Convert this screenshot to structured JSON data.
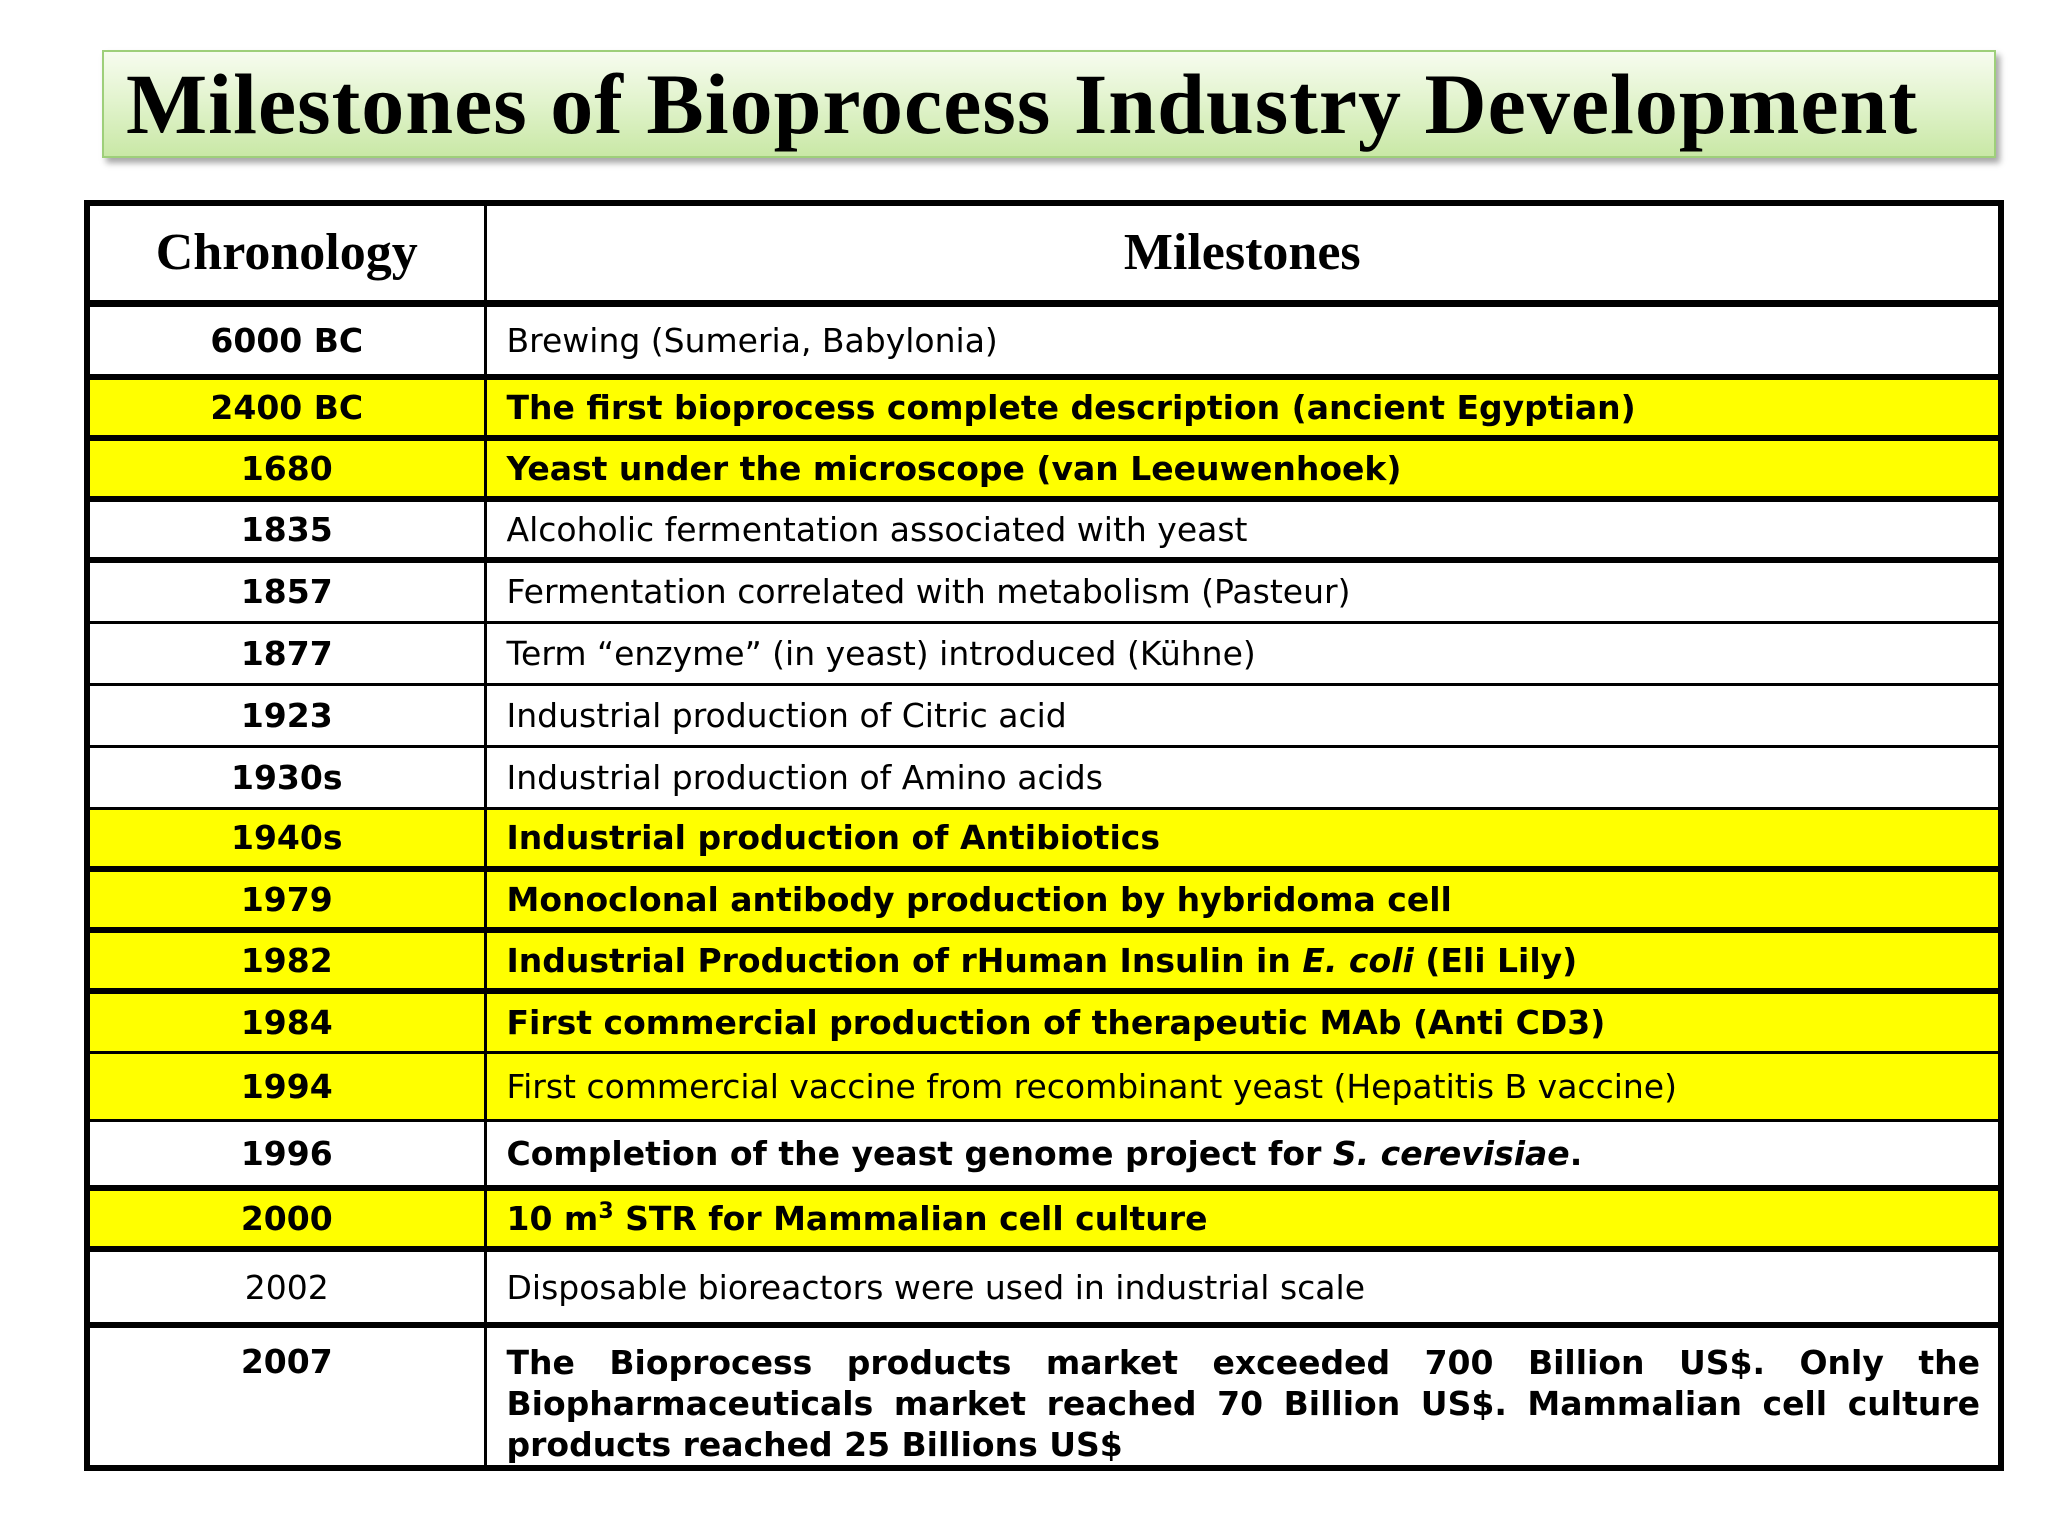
{
  "title": "Milestones of Bioprocess Industry Development",
  "table": {
    "headers": {
      "chronology": "Chronology",
      "milestones": "Milestones"
    },
    "rows": [
      {
        "year": "6000 BC",
        "milestone": "Brewing (Sumeria, Babylonia)"
      },
      {
        "year": "2400 BC",
        "milestone": "The first bioprocess complete description (ancient Egyptian)"
      },
      {
        "year": "1680",
        "milestone": "Yeast under the microscope (van Leeuwenhoek)"
      },
      {
        "year": "1835",
        "milestone": "Alcoholic fermentation associated with yeast"
      },
      {
        "year": "1857",
        "milestone": "Fermentation correlated with metabolism (Pasteur)"
      },
      {
        "year": "1877",
        "milestone": "Term “enzyme” (in yeast) introduced (Kühne)"
      },
      {
        "year": "1923",
        "milestone": "Industrial production of Citric acid"
      },
      {
        "year": "1930s",
        "milestone": "Industrial production of Amino acids"
      },
      {
        "year": "1940s",
        "milestone": "Industrial production of Antibiotics"
      },
      {
        "year": "1979",
        "milestone": "Monoclonal antibody production by hybridoma cell"
      },
      {
        "year": "1982",
        "milestone_before": "Industrial Production of rHuman Insulin in ",
        "milestone_italic": "E. coli",
        "milestone_after": " (Eli Lily)"
      },
      {
        "year": "1984",
        "milestone": "First commercial production of therapeutic MAb (Anti CD3)"
      },
      {
        "year": "1994",
        "milestone": "First commercial vaccine from recombinant yeast (Hepatitis B vaccine)"
      },
      {
        "year": "1996",
        "milestone_before": "Completion of the yeast genome project for ",
        "milestone_italic": "S. cerevisiae",
        "milestone_after": "."
      },
      {
        "year": "2000",
        "milestone_before": "10 m",
        "milestone_sup": "3",
        "milestone_after": " STR for Mammalian cell culture"
      },
      {
        "year": "2002",
        "milestone": "Disposable bioreactors were used in industrial scale"
      },
      {
        "year": "2007",
        "milestone": "The Bioprocess products market exceeded 700 Billion US$. Only the Biopharmaceuticals market reached 70 Billion US$. Mammalian cell  culture products reached 25 Billions US$"
      }
    ]
  }
}
